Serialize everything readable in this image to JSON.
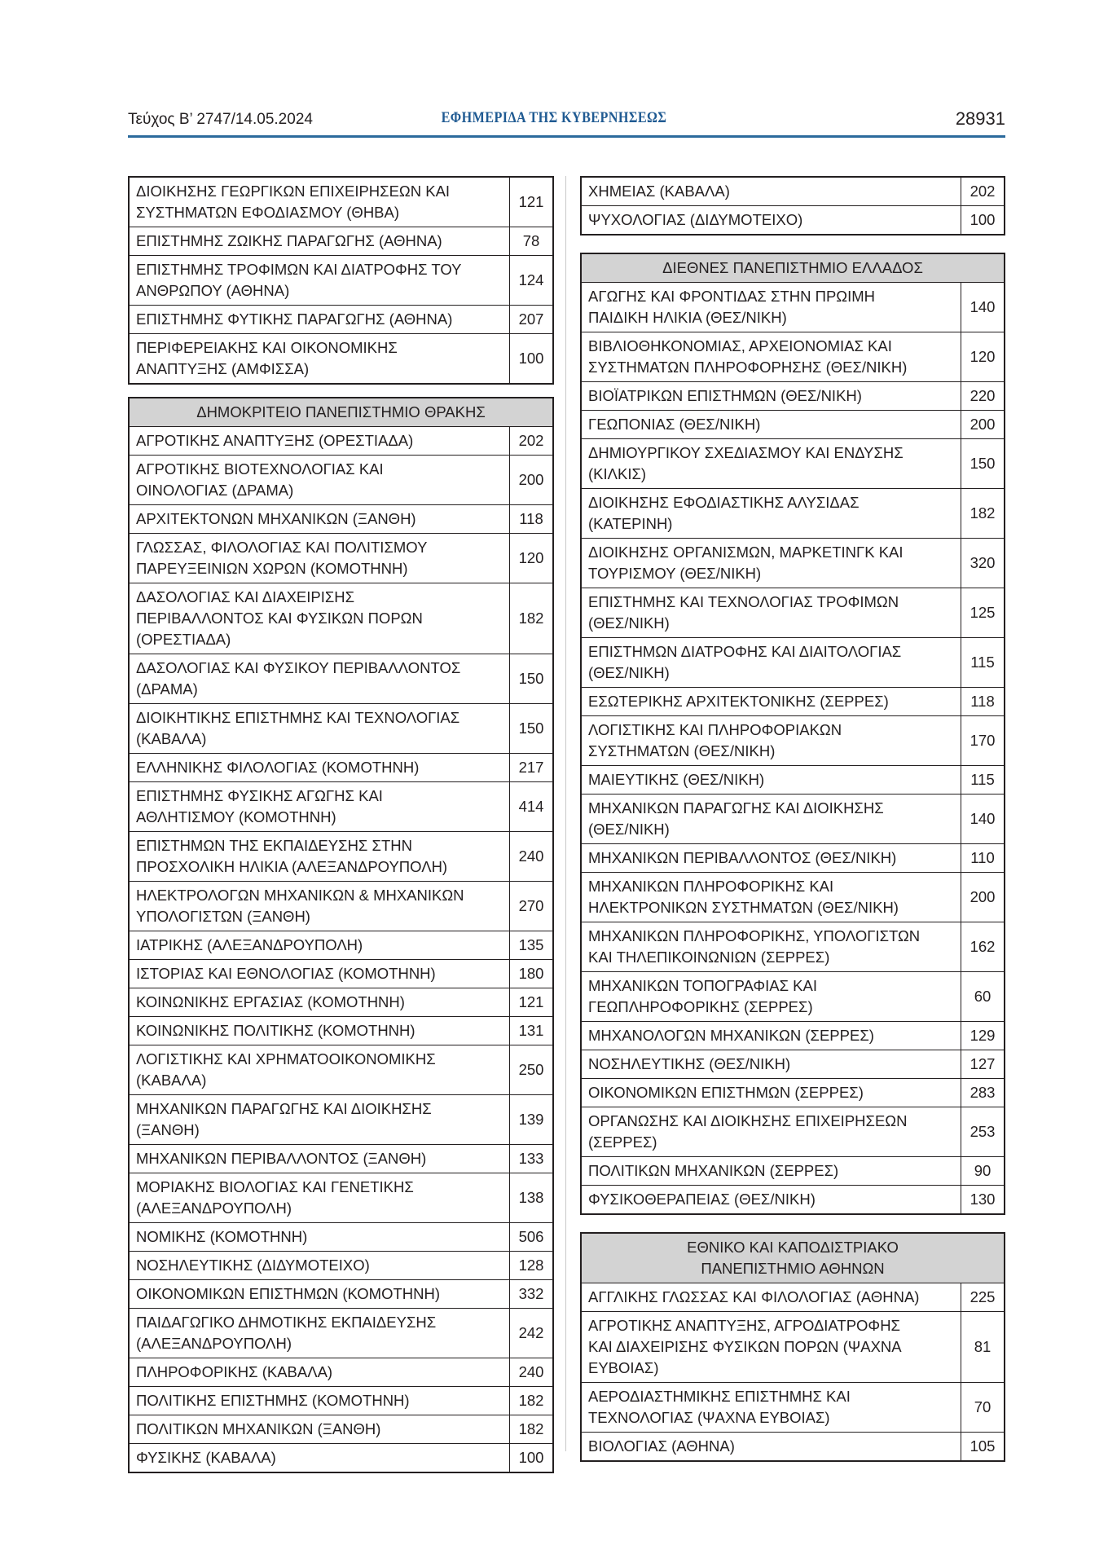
{
  "header": {
    "issue": "Τεύχος Β’ 2747/14.05.2024",
    "title": "ΕΦΗΜΕΡΙΔΑ ΤΗΣ ΚΥΒΕΡΝΗΣΕΩΣ",
    "page": "28931",
    "rule_color": "#2b6a9c"
  },
  "columns": [
    {
      "groups": [
        {
          "heading": null,
          "rows": [
            {
              "name": "ΔΙΟΙΚΗΣΗΣ ΓΕΩΡΓΙΚΩΝ ΕΠΙΧΕΙΡΗΣΕΩΝ ΚΑΙ\nΣΥΣΤΗΜΑΤΩΝ ΕΦΟΔΙΑΣΜΟΥ (ΘΗΒΑ)",
              "value": "121"
            },
            {
              "name": "ΕΠΙΣΤΗΜΗΣ ΖΩΙΚΗΣ ΠΑΡΑΓΩΓΗΣ (ΑΘΗΝΑ)",
              "value": "78"
            },
            {
              "name": "ΕΠΙΣΤΗΜΗΣ ΤΡΟΦΙΜΩΝ ΚΑΙ ΔΙΑΤΡΟΦΗΣ ΤΟΥ\nΑΝΘΡΩΠΟΥ (ΑΘΗΝΑ)",
              "value": "124"
            },
            {
              "name": "ΕΠΙΣΤΗΜΗΣ ΦΥΤΙΚΗΣ ΠΑΡΑΓΩΓΗΣ (ΑΘΗΝΑ)",
              "value": "207"
            },
            {
              "name": "ΠΕΡΙΦΕΡΕΙΑΚΗΣ ΚΑΙ ΟΙΚΟΝΟΜΙΚΗΣ\nΑΝΑΠΤΥΞΗΣ (ΑΜΦΙΣΣΑ)",
              "value": "100"
            }
          ]
        },
        {
          "heading": "ΔΗΜΟΚΡΙΤΕΙΟ ΠΑΝΕΠΙΣΤΗΜΙΟ ΘΡΑΚΗΣ",
          "rows": [
            {
              "name": "ΑΓΡΟΤΙΚΗΣ ΑΝΑΠΤΥΞΗΣ (ΟΡΕΣΤΙΑΔΑ)",
              "value": "202"
            },
            {
              "name": "ΑΓΡΟΤΙΚΗΣ ΒΙΟΤΕΧΝΟΛΟΓΙΑΣ ΚΑΙ\nΟΙΝΟΛΟΓΙΑΣ (ΔΡΑΜΑ)",
              "value": "200"
            },
            {
              "name": "ΑΡΧΙΤΕΚΤΟΝΩΝ ΜΗΧΑΝΙΚΩΝ (ΞΑΝΘΗ)",
              "value": "118"
            },
            {
              "name": "ΓΛΩΣΣΑΣ, ΦΙΛΟΛΟΓΙΑΣ ΚΑΙ ΠΟΛΙΤΙΣΜΟΥ\nΠΑΡΕΥΞΕΙΝΙΩΝ ΧΩΡΩΝ (ΚΟΜΟΤΗΝΗ)",
              "value": "120"
            },
            {
              "name": "ΔΑΣΟΛΟΓΙΑΣ ΚΑΙ ΔΙΑΧΕΙΡΙΣΗΣ\nΠΕΡΙΒΑΛΛΟΝΤΟΣ ΚΑΙ ΦΥΣΙΚΩΝ ΠΟΡΩΝ\n(ΟΡΕΣΤΙΑΔΑ)",
              "value": "182"
            },
            {
              "name": "ΔΑΣΟΛΟΓΙΑΣ ΚΑΙ ΦΥΣΙΚΟΥ ΠΕΡΙΒΑΛΛΟΝΤΟΣ\n(ΔΡΑΜΑ)",
              "value": "150"
            },
            {
              "name": "ΔΙΟΙΚΗΤΙΚΗΣ ΕΠΙΣΤΗΜΗΣ ΚΑΙ ΤΕΧΝΟΛΟΓΙΑΣ\n(ΚΑΒΑΛΑ)",
              "value": "150"
            },
            {
              "name": "ΕΛΛΗΝΙΚΗΣ ΦΙΛΟΛΟΓΙΑΣ (ΚΟΜΟΤΗΝΗ)",
              "value": "217"
            },
            {
              "name": "ΕΠΙΣΤΗΜΗΣ ΦΥΣΙΚΗΣ ΑΓΩΓΗΣ ΚΑΙ\nΑΘΛΗΤΙΣΜΟΥ (ΚΟΜΟΤΗΝΗ)",
              "value": "414"
            },
            {
              "name": "ΕΠΙΣΤΗΜΩΝ ΤΗΣ ΕΚΠΑΙΔΕΥΣΗΣ ΣΤΗΝ\nΠΡΟΣΧΟΛΙΚΗ ΗΛΙΚΙΑ (ΑΛΕΞΑΝΔΡΟΥΠΟΛΗ)",
              "value": "240"
            },
            {
              "name": "ΗΛΕΚΤΡΟΛΟΓΩΝ ΜΗΧΑΝΙΚΩΝ & ΜΗΧΑΝΙΚΩΝ\nΥΠΟΛΟΓΙΣΤΩΝ (ΞΑΝΘΗ)",
              "value": "270"
            },
            {
              "name": "ΙΑΤΡΙΚΗΣ (ΑΛΕΞΑΝΔΡΟΥΠΟΛΗ)",
              "value": "135"
            },
            {
              "name": "ΙΣΤΟΡΙΑΣ ΚΑΙ ΕΘΝΟΛΟΓΙΑΣ (ΚΟΜΟΤΗΝΗ)",
              "value": "180"
            },
            {
              "name": "ΚΟΙΝΩΝΙΚΗΣ ΕΡΓΑΣΙΑΣ (ΚΟΜΟΤΗΝΗ)",
              "value": "121"
            },
            {
              "name": "ΚΟΙΝΩΝΙΚΗΣ ΠΟΛΙΤΙΚΗΣ (ΚΟΜΟΤΗΝΗ)",
              "value": "131"
            },
            {
              "name": "ΛΟΓΙΣΤΙΚΗΣ ΚΑΙ ΧΡΗΜΑΤΟΟΙΚΟΝΟΜΙΚΗΣ\n(ΚΑΒΑΛΑ)",
              "value": "250"
            },
            {
              "name": "ΜΗΧΑΝΙΚΩΝ ΠΑΡΑΓΩΓΗΣ ΚΑΙ ΔΙΟΙΚΗΣΗΣ\n(ΞΑΝΘΗ)",
              "value": "139"
            },
            {
              "name": "ΜΗΧΑΝΙΚΩΝ ΠΕΡΙΒΑΛΛΟΝΤΟΣ (ΞΑΝΘΗ)",
              "value": "133"
            },
            {
              "name": "ΜΟΡΙΑΚΗΣ ΒΙΟΛΟΓΙΑΣ ΚΑΙ ΓΕΝΕΤΙΚΗΣ\n(ΑΛΕΞΑΝΔΡΟΥΠΟΛΗ)",
              "value": "138"
            },
            {
              "name": "ΝΟΜΙΚΗΣ (ΚΟΜΟΤΗΝΗ)",
              "value": "506"
            },
            {
              "name": "ΝΟΣΗΛΕΥΤΙΚΗΣ (ΔΙΔΥΜΟΤΕΙΧΟ)",
              "value": "128"
            },
            {
              "name": "ΟΙΚΟΝΟΜΙΚΩΝ ΕΠΙΣΤΗΜΩΝ (ΚΟΜΟΤΗΝΗ)",
              "value": "332"
            },
            {
              "name": "ΠΑΙΔΑΓΩΓΙΚΟ ΔΗΜΟΤΙΚΗΣ ΕΚΠΑΙΔΕΥΣΗΣ\n(ΑΛΕΞΑΝΔΡΟΥΠΟΛΗ)",
              "value": "242"
            },
            {
              "name": "ΠΛΗΡΟΦΟΡΙΚΗΣ (ΚΑΒΑΛΑ)",
              "value": "240"
            },
            {
              "name": "ΠΟΛΙΤΙΚΗΣ ΕΠΙΣΤΗΜΗΣ (ΚΟΜΟΤΗΝΗ)",
              "value": "182"
            },
            {
              "name": "ΠΟΛΙΤΙΚΩΝ ΜΗΧΑΝΙΚΩΝ (ΞΑΝΘΗ)",
              "value": "182"
            },
            {
              "name": "ΦΥΣΙΚΗΣ (ΚΑΒΑΛΑ)",
              "value": "100"
            }
          ]
        }
      ]
    },
    {
      "groups": [
        {
          "heading": null,
          "rows": [
            {
              "name": "ΧΗΜΕΙΑΣ (ΚΑΒΑΛΑ)",
              "value": "202"
            },
            {
              "name": "ΨΥΧΟΛΟΓΙΑΣ (ΔΙΔΥΜΟΤΕΙΧΟ)",
              "value": "100"
            }
          ]
        },
        {
          "heading": "ΔΙΕΘΝΕΣ ΠΑΝΕΠΙΣΤΗΜΙΟ ΕΛΛΑΔΟΣ",
          "rows": [
            {
              "name": "ΑΓΩΓΗΣ ΚΑΙ ΦΡΟΝΤΙΔΑΣ ΣΤΗΝ ΠΡΩΙΜΗ\nΠΑΙΔΙΚΗ ΗΛΙΚΙΑ (ΘΕΣ/ΝΙΚΗ)",
              "value": "140"
            },
            {
              "name": "ΒΙΒΛΙΟΘΗΚΟΝΟΜΙΑΣ, ΑΡΧΕΙΟΝΟΜΙΑΣ ΚΑΙ\nΣΥΣΤΗΜΑΤΩΝ ΠΛΗΡΟΦΟΡΗΣΗΣ (ΘΕΣ/ΝΙΚΗ)",
              "value": "120"
            },
            {
              "name": "ΒΙΟΪΑΤΡΙΚΩΝ ΕΠΙΣΤΗΜΩΝ (ΘΕΣ/ΝΙΚΗ)",
              "value": "220"
            },
            {
              "name": "ΓΕΩΠΟΝΙΑΣ (ΘΕΣ/ΝΙΚΗ)",
              "value": "200"
            },
            {
              "name": "ΔΗΜΙΟΥΡΓΙΚΟΥ ΣΧΕΔΙΑΣΜΟΥ ΚΑΙ ΕΝΔΥΣΗΣ\n(ΚΙΛΚΙΣ)",
              "value": "150"
            },
            {
              "name": "ΔΙΟΙΚΗΣΗΣ ΕΦΟΔΙΑΣΤΙΚΗΣ ΑΛΥΣΙΔΑΣ\n(ΚΑΤΕΡΙΝΗ)",
              "value": "182"
            },
            {
              "name": "ΔΙΟΙΚΗΣΗΣ ΟΡΓΑΝΙΣΜΩΝ, ΜΑΡΚΕΤΙΝΓΚ ΚΑΙ\nΤΟΥΡΙΣΜΟΥ (ΘΕΣ/ΝΙΚΗ)",
              "value": "320"
            },
            {
              "name": "ΕΠΙΣΤΗΜΗΣ ΚΑΙ ΤΕΧΝΟΛΟΓΙΑΣ ΤΡΟΦΙΜΩΝ\n(ΘΕΣ/ΝΙΚΗ)",
              "value": "125"
            },
            {
              "name": "ΕΠΙΣΤΗΜΩΝ ΔΙΑΤΡΟΦΗΣ ΚΑΙ ΔΙΑΙΤΟΛΟΓΙΑΣ\n(ΘΕΣ/ΝΙΚΗ)",
              "value": "115"
            },
            {
              "name": "ΕΣΩΤΕΡΙΚΗΣ ΑΡΧΙΤΕΚΤΟΝΙΚΗΣ (ΣΕΡΡΕΣ)",
              "value": "118"
            },
            {
              "name": "ΛΟΓΙΣΤΙΚΗΣ ΚΑΙ ΠΛΗΡΟΦΟΡΙΑΚΩΝ\nΣΥΣΤΗΜΑΤΩΝ (ΘΕΣ/ΝΙΚΗ)",
              "value": "170"
            },
            {
              "name": "ΜΑΙΕΥΤΙΚΗΣ (ΘΕΣ/ΝΙΚΗ)",
              "value": "115"
            },
            {
              "name": "ΜΗΧΑΝΙΚΩΝ ΠΑΡΑΓΩΓΗΣ ΚΑΙ ΔΙΟΙΚΗΣΗΣ\n(ΘΕΣ/ΝΙΚΗ)",
              "value": "140"
            },
            {
              "name": "ΜΗΧΑΝΙΚΩΝ ΠΕΡΙΒΑΛΛΟΝΤΟΣ (ΘΕΣ/ΝΙΚΗ)",
              "value": "110"
            },
            {
              "name": "ΜΗΧΑΝΙΚΩΝ ΠΛΗΡΟΦΟΡΙΚΗΣ ΚΑΙ\nΗΛΕΚΤΡΟΝΙΚΩΝ ΣΥΣΤΗΜΑΤΩΝ (ΘΕΣ/ΝΙΚΗ)",
              "value": "200"
            },
            {
              "name": "ΜΗΧΑΝΙΚΩΝ ΠΛΗΡΟΦΟΡΙΚΗΣ, ΥΠΟΛΟΓΙΣΤΩΝ\nΚΑΙ ΤΗΛΕΠΙΚΟΙΝΩΝΙΩΝ (ΣΕΡΡΕΣ)",
              "value": "162"
            },
            {
              "name": "ΜΗΧΑΝΙΚΩΝ ΤΟΠΟΓΡΑΦΙΑΣ ΚΑΙ\nΓΕΩΠΛΗΡΟΦΟΡΙΚΗΣ (ΣΕΡΡΕΣ)",
              "value": "60"
            },
            {
              "name": "ΜΗΧΑΝΟΛΟΓΩΝ ΜΗΧΑΝΙΚΩΝ (ΣΕΡΡΕΣ)",
              "value": "129"
            },
            {
              "name": "ΝΟΣΗΛΕΥΤΙΚΗΣ (ΘΕΣ/ΝΙΚΗ)",
              "value": "127"
            },
            {
              "name": "ΟΙΚΟΝΟΜΙΚΩΝ ΕΠΙΣΤΗΜΩΝ (ΣΕΡΡΕΣ)",
              "value": "283"
            },
            {
              "name": "ΟΡΓΑΝΩΣΗΣ ΚΑΙ ΔΙΟΙΚΗΣΗΣ ΕΠΙΧΕΙΡΗΣΕΩΝ\n(ΣΕΡΡΕΣ)",
              "value": "253"
            },
            {
              "name": "ΠΟΛΙΤΙΚΩΝ ΜΗΧΑΝΙΚΩΝ (ΣΕΡΡΕΣ)",
              "value": "90"
            },
            {
              "name": "ΦΥΣΙΚΟΘΕΡΑΠΕΙΑΣ (ΘΕΣ/ΝΙΚΗ)",
              "value": "130"
            }
          ]
        },
        {
          "heading": "ΕΘΝΙΚΟ ΚΑΙ ΚΑΠΟΔΙΣΤΡΙΑΚΟ\nΠΑΝΕΠΙΣΤΗΜΙΟ ΑΘΗΝΩΝ",
          "rows": [
            {
              "name": "ΑΓΓΛΙΚΗΣ ΓΛΩΣΣΑΣ ΚΑΙ ΦΙΛΟΛΟΓΙΑΣ (ΑΘΗΝΑ)",
              "value": "225"
            },
            {
              "name": "ΑΓΡΟΤΙΚΗΣ ΑΝΑΠΤΥΞΗΣ, ΑΓΡΟΔΙΑΤΡΟΦΗΣ\nΚΑΙ ΔΙΑΧΕΙΡΙΣΗΣ ΦΥΣΙΚΩΝ ΠΟΡΩΝ (ΨΑΧΝΑ\nΕΥΒΟΙΑΣ)",
              "value": "81"
            },
            {
              "name": "ΑΕΡΟΔΙΑΣΤΗΜΙΚΗΣ ΕΠΙΣΤΗΜΗΣ ΚΑΙ\nΤΕΧΝΟΛΟΓΙΑΣ (ΨΑΧΝΑ ΕΥΒΟΙΑΣ)",
              "value": "70"
            },
            {
              "name": "ΒΙΟΛΟΓΙΑΣ (ΑΘΗΝΑ)",
              "value": "105"
            }
          ]
        }
      ]
    }
  ]
}
